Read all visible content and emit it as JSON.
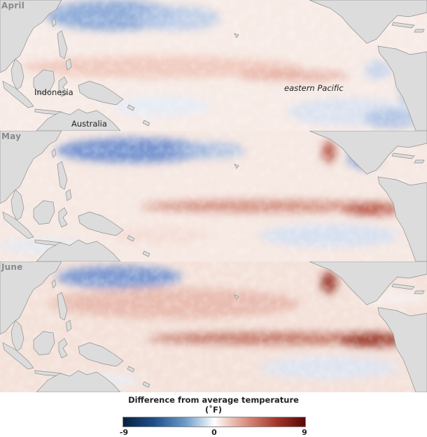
{
  "panels": [
    {
      "month": "April",
      "labels": {
        "indonesia": "Indonesia",
        "australia": "Australia",
        "eastern_pacific": "eastern Pacific"
      }
    },
    {
      "month": "May"
    },
    {
      "month": "June"
    }
  ],
  "legend": {
    "title": "Difference from average temperature (˚F)",
    "min_label": "-9",
    "mid_label": "0",
    "max_label": "9",
    "colors": {
      "cold": "#08213f",
      "neutral": "#ffffff",
      "warm": "#5a0707"
    }
  },
  "land_color": "#dcdcdc"
}
